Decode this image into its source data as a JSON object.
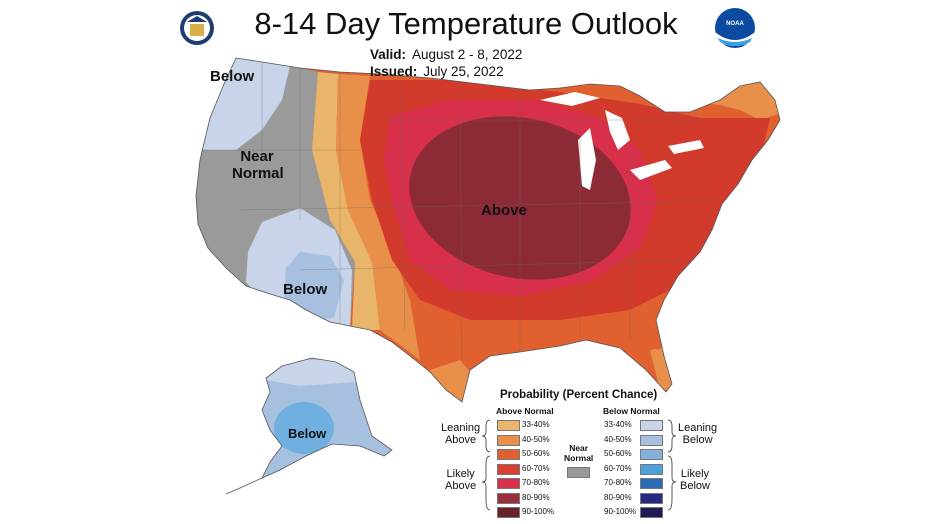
{
  "header": {
    "title": "8-14 Day Temperature Outlook",
    "valid_label": "Valid:",
    "valid_value": "August 2 - 8, 2022",
    "issued_label": "Issued:",
    "issued_value": "July 25, 2022",
    "noaa_text": "NOAA"
  },
  "map_labels": {
    "below_nw": "Below",
    "near_normal_1": "Near",
    "near_normal_2": "Normal",
    "above": "Above",
    "below_sw": "Below",
    "below_ak": "Below"
  },
  "legend": {
    "title": "Probability (Percent Chance)",
    "above_header": "Above Normal",
    "below_header": "Below Normal",
    "near_header_1": "Near",
    "near_header_2": "Normal",
    "above_rows": [
      "33-40%",
      "40-50%",
      "50-60%",
      "60-70%",
      "70-80%",
      "80-90%",
      "90-100%"
    ],
    "below_rows": [
      "33-40%",
      "40-50%",
      "50-60%",
      "60-70%",
      "70-80%",
      "80-90%",
      "90-100%"
    ],
    "above_colors": [
      "#e8b56a",
      "#e8904a",
      "#e06030",
      "#d84030",
      "#d8304a",
      "#982f3a",
      "#6a2228"
    ],
    "below_colors": [
      "#c8d4ea",
      "#a8c0e0",
      "#84b0dc",
      "#4da0dc",
      "#2a6cb4",
      "#262a80",
      "#1e1a54"
    ],
    "near_color": "#999999",
    "leaning_above_1": "Leaning",
    "leaning_above_2": "Above",
    "likely_above_1": "Likely",
    "likely_above_2": "Above",
    "leaning_below_1": "Leaning",
    "leaning_below_2": "Below",
    "likely_below_1": "Likely",
    "likely_below_2": "Below"
  }
}
